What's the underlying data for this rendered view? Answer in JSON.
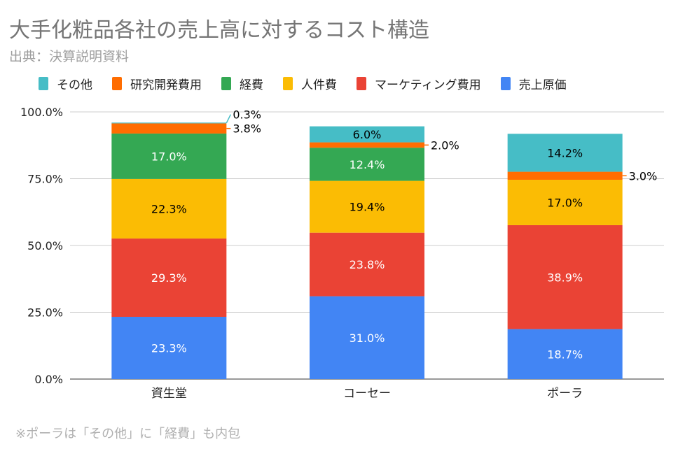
{
  "title": "大手化粧品各社の売上高に対するコスト構造",
  "subtitle": "出典：決算説明資料",
  "note": "※ポーラは「その他」に「経費」も内包",
  "chart_data": {
    "type": "bar",
    "stacked": true,
    "categories": [
      "資生堂",
      "コーセー",
      "ポーラ"
    ],
    "series": [
      {
        "name": "売上原価",
        "color": "#4285f4",
        "values": [
          23.3,
          31.0,
          18.7
        ],
        "label_color": "#ffffff"
      },
      {
        "name": "マーケティング費用",
        "color": "#ea4335",
        "values": [
          29.3,
          23.8,
          38.9
        ],
        "label_color": "#ffffff"
      },
      {
        "name": "人件費",
        "color": "#fbbc04",
        "values": [
          22.3,
          19.4,
          17.0
        ],
        "label_color": "#000000"
      },
      {
        "name": "経費",
        "color": "#34a853",
        "values": [
          17.0,
          12.4,
          null
        ],
        "label_color": "#ffffff"
      },
      {
        "name": "研究開発費用",
        "color": "#ff6d01",
        "values": [
          3.8,
          2.0,
          3.0
        ],
        "label_color": "#000000"
      },
      {
        "name": "その他",
        "color": "#46bdc6",
        "values": [
          0.3,
          6.0,
          14.2
        ],
        "label_color": "#000000"
      }
    ],
    "legend_order": [
      "その他",
      "研究開発費用",
      "経費",
      "人件費",
      "マーケティング費用",
      "売上原価"
    ],
    "legend_placement": "top",
    "yticks": [
      "0.0%",
      "25.0%",
      "50.0%",
      "75.0%",
      "100.0%"
    ],
    "ylim": [
      0,
      100
    ],
    "grid": true
  }
}
